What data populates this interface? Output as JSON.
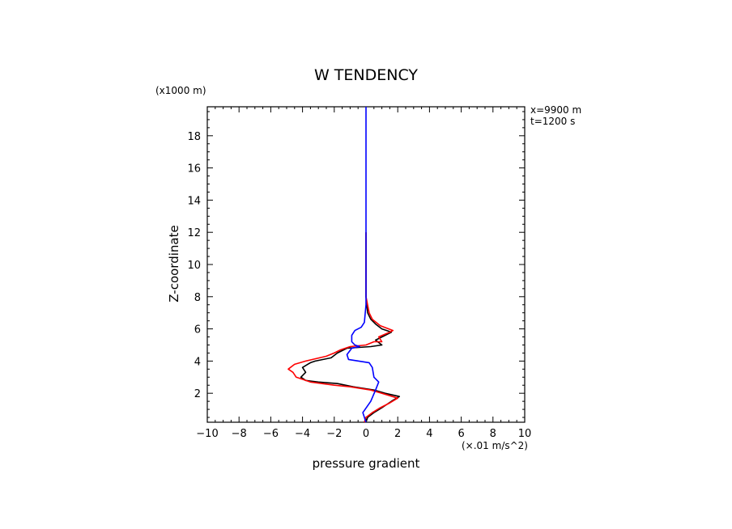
{
  "chart_data": {
    "type": "line",
    "title": "W TENDENCY",
    "xlabel": "pressure gradient",
    "x_unit": "(×.01 m/s^2)",
    "ylabel": "Z-coordinate",
    "y_unit": "(x1000 m)",
    "annotations": [
      "x=9900 m",
      "t=1200 s"
    ],
    "xlim": [
      -10,
      10
    ],
    "ylim": [
      0.2,
      19.8
    ],
    "xticks": [
      -10,
      -8,
      -6,
      -4,
      -2,
      0,
      2,
      4,
      6,
      8,
      10
    ],
    "yticks": [
      2,
      4,
      6,
      8,
      10,
      12,
      14,
      16,
      18
    ],
    "xtick_labels": [
      "−10",
      "−8",
      "−6",
      "−4",
      "−2",
      "0",
      "2",
      "4",
      "6",
      "8",
      "10"
    ],
    "ytick_labels": [
      "2",
      "4",
      "6",
      "8",
      "10",
      "12",
      "14",
      "16",
      "18"
    ],
    "grid": false,
    "series": [
      {
        "color": "#000000",
        "points": [
          [
            0.0,
            0.2
          ],
          [
            0.1,
            0.5
          ],
          [
            0.5,
            0.8
          ],
          [
            1.0,
            1.1
          ],
          [
            1.6,
            1.5
          ],
          [
            2.1,
            1.8
          ],
          [
            1.2,
            2.0
          ],
          [
            0.5,
            2.2
          ],
          [
            -0.8,
            2.4
          ],
          [
            -1.8,
            2.6
          ],
          [
            -3.0,
            2.7
          ],
          [
            -3.8,
            2.8
          ],
          [
            -4.1,
            3.0
          ],
          [
            -3.8,
            3.3
          ],
          [
            -4.0,
            3.6
          ],
          [
            -3.5,
            3.9
          ],
          [
            -3.2,
            4.0
          ],
          [
            -2.2,
            4.2
          ],
          [
            -1.8,
            4.5
          ],
          [
            -1.2,
            4.8
          ],
          [
            0.3,
            4.9
          ],
          [
            1.0,
            5.0
          ],
          [
            0.6,
            5.3
          ],
          [
            1.2,
            5.6
          ],
          [
            1.6,
            5.8
          ],
          [
            1.0,
            6.0
          ],
          [
            0.6,
            6.3
          ],
          [
            0.3,
            6.6
          ],
          [
            0.1,
            7.0
          ],
          [
            0.0,
            8.0
          ],
          [
            0.0,
            10.0
          ],
          [
            0.0,
            12.0
          ]
        ]
      },
      {
        "color": "#ff0000",
        "points": [
          [
            -0.1,
            0.2
          ],
          [
            0.0,
            0.5
          ],
          [
            0.4,
            0.8
          ],
          [
            0.9,
            1.1
          ],
          [
            1.5,
            1.4
          ],
          [
            2.0,
            1.7
          ],
          [
            1.0,
            2.0
          ],
          [
            0.3,
            2.2
          ],
          [
            -1.0,
            2.4
          ],
          [
            -2.0,
            2.5
          ],
          [
            -3.5,
            2.7
          ],
          [
            -4.4,
            3.0
          ],
          [
            -4.6,
            3.3
          ],
          [
            -4.9,
            3.5
          ],
          [
            -4.5,
            3.8
          ],
          [
            -3.8,
            4.0
          ],
          [
            -2.5,
            4.3
          ],
          [
            -2.0,
            4.5
          ],
          [
            -1.6,
            4.7
          ],
          [
            -1.0,
            4.9
          ],
          [
            0.0,
            5.0
          ],
          [
            0.5,
            5.2
          ],
          [
            1.0,
            5.2
          ],
          [
            0.8,
            5.5
          ],
          [
            1.5,
            5.8
          ],
          [
            1.7,
            5.9
          ],
          [
            0.9,
            6.2
          ],
          [
            0.4,
            6.6
          ],
          [
            0.2,
            7.0
          ],
          [
            0.0,
            8.0
          ],
          [
            0.0,
            10.0
          ],
          [
            0.0,
            12.0
          ]
        ]
      },
      {
        "color": "#0000ff",
        "points": [
          [
            0.0,
            0.2
          ],
          [
            -0.2,
            0.8
          ],
          [
            0.3,
            1.5
          ],
          [
            0.6,
            2.2
          ],
          [
            0.8,
            2.7
          ],
          [
            0.5,
            3.0
          ],
          [
            0.4,
            3.6
          ],
          [
            0.2,
            3.9
          ],
          [
            -1.1,
            4.1
          ],
          [
            -1.2,
            4.4
          ],
          [
            -0.9,
            4.8
          ],
          [
            -0.4,
            4.9
          ],
          [
            -0.7,
            5.0
          ],
          [
            -0.9,
            5.2
          ],
          [
            -0.9,
            5.6
          ],
          [
            -0.7,
            5.9
          ],
          [
            -0.3,
            6.1
          ],
          [
            -0.1,
            6.4
          ],
          [
            0.0,
            7.5
          ],
          [
            0.0,
            10.0
          ],
          [
            0.0,
            14.0
          ],
          [
            0.0,
            19.8
          ]
        ]
      }
    ]
  }
}
